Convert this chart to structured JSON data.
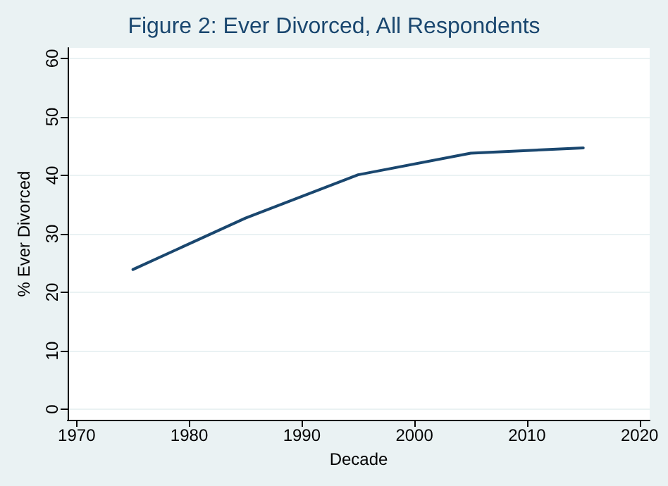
{
  "chart_data": {
    "type": "line",
    "title": "Figure 2: Ever Divorced, All Respondents",
    "xlabel": "Decade",
    "ylabel": "% Ever Divorced",
    "x": [
      1975,
      1985,
      1995,
      2005,
      2015
    ],
    "series": [
      {
        "color": "#1a476f",
        "values": [
          23.9,
          32.7,
          40.1,
          43.8,
          44.7
        ]
      }
    ],
    "xlim": [
      1969.2,
      2020.9
    ],
    "xticks": [
      1970,
      1980,
      1990,
      2000,
      2010,
      2020
    ],
    "ylim": [
      -1.8,
      61.8
    ],
    "yticks": [
      0,
      10,
      20,
      30,
      40,
      50,
      60
    ],
    "grid": "y",
    "marker": "none",
    "line_style": "solid"
  }
}
